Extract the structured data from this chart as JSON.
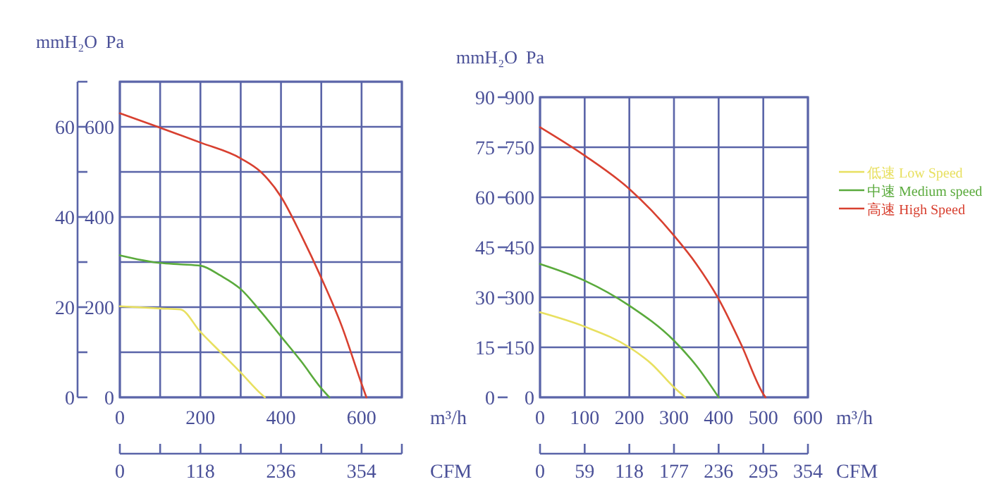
{
  "chart_data": [
    {
      "type": "line",
      "xlabel": "m³/h",
      "x2label": "CFM",
      "ylabel": "Pa",
      "y2label": "mmH₂O",
      "grid": true,
      "xlim": [
        0,
        700
      ],
      "xticks": [
        0,
        {
          "value": 100,
          "label": null
        },
        200,
        {
          "value": 300,
          "label": null
        },
        400,
        {
          "value": 500,
          "label": null
        },
        600,
        {
          "value": 700,
          "label": null
        }
      ],
      "x2lim": [
        0,
        413
      ],
      "x2ticks": [
        0,
        {
          "value": 59,
          "label": null
        },
        118,
        {
          "value": 177,
          "label": null
        },
        236,
        {
          "value": 295,
          "label": null
        },
        354,
        {
          "value": 413,
          "label": null
        }
      ],
      "ylim": [
        0,
        700
      ],
      "yticks": [
        0,
        {
          "value": 100,
          "label": null
        },
        200,
        {
          "value": 300,
          "label": null
        },
        400,
        {
          "value": 500,
          "label": null
        },
        600,
        {
          "value": 700,
          "label": null
        }
      ],
      "y2lim": [
        0,
        70
      ],
      "y2ticks": [
        0,
        {
          "value": 10,
          "label": null
        },
        20,
        {
          "value": 30,
          "label": null
        },
        40,
        {
          "value": 50,
          "label": null
        },
        60,
        {
          "value": 70,
          "label": null
        }
      ],
      "series": [
        {
          "color": "#e8e060",
          "x": [
            0,
            100,
            150,
            200,
            250,
            300,
            350,
            360
          ],
          "values": [
            202,
            197,
            195,
            145,
            100,
            55,
            8,
            0
          ]
        },
        {
          "color": "#5aaa3c",
          "x": [
            0,
            100,
            150,
            200,
            250,
            300,
            350,
            400,
            450,
            500,
            520
          ],
          "values": [
            315,
            298,
            295,
            292,
            270,
            240,
            190,
            135,
            80,
            20,
            0
          ]
        },
        {
          "color": "#d84030",
          "x": [
            0,
            100,
            200,
            300,
            350,
            400,
            450,
            500,
            550,
            600,
            612
          ],
          "values": [
            630,
            598,
            565,
            530,
            500,
            445,
            360,
            265,
            160,
            30,
            0
          ]
        }
      ]
    },
    {
      "type": "line",
      "xlabel": "m³/h",
      "x2label": "CFM",
      "ylabel": "Pa",
      "y2label": "mmH₂O",
      "grid": true,
      "legend": "right",
      "xlim": [
        0,
        600
      ],
      "xticks": [
        0,
        100,
        200,
        300,
        400,
        500,
        600
      ],
      "x2lim": [
        0,
        354
      ],
      "x2ticks": [
        0,
        59,
        118,
        177,
        236,
        295,
        354
      ],
      "ylim": [
        0,
        900
      ],
      "yticks": [
        0,
        150,
        300,
        450,
        600,
        750,
        900
      ],
      "y2lim": [
        0,
        90
      ],
      "y2ticks": [
        0,
        15,
        30,
        45,
        60,
        75,
        90
      ],
      "series": [
        {
          "name": "低速 Low Speed",
          "color": "#e8e060",
          "x": [
            0,
            100,
            200,
            250,
            300,
            325
          ],
          "values": [
            255,
            212,
            150,
            100,
            30,
            0
          ]
        },
        {
          "name": "中速 Medium speed",
          "color": "#5aaa3c",
          "x": [
            0,
            100,
            200,
            300,
            350,
            400
          ],
          "values": [
            400,
            350,
            275,
            170,
            95,
            0
          ]
        },
        {
          "name": "高速 High Speed",
          "color": "#d84030",
          "x": [
            0,
            100,
            200,
            250,
            300,
            350,
            400,
            450,
            500,
            505
          ],
          "values": [
            810,
            725,
            625,
            560,
            485,
            400,
            295,
            160,
            10,
            0
          ]
        }
      ]
    }
  ]
}
